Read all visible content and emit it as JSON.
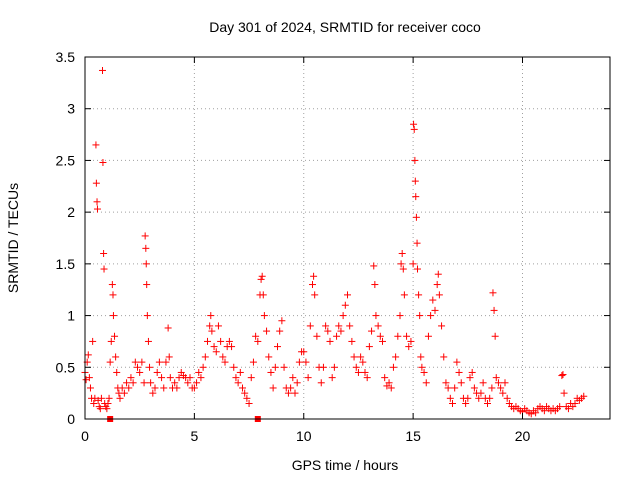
{
  "chart_data": {
    "type": "scatter",
    "title": "Day 301 of 2024, SRMTID for receiver coco",
    "xlabel": "GPS time / hours",
    "ylabel": "SRMTID / TECUs",
    "xlim": [
      0,
      24
    ],
    "ylim": [
      0,
      3.5
    ],
    "xticks": [
      0,
      5,
      10,
      15,
      20
    ],
    "yticks": [
      0,
      0.5,
      1,
      1.5,
      2,
      2.5,
      3,
      3.5
    ],
    "xtick_labels": [
      "0",
      "5",
      "10",
      "15",
      "20"
    ],
    "ytick_labels": [
      "0",
      "0.5",
      "1",
      "1.5",
      "2",
      "2.5",
      "3",
      "3.5"
    ],
    "grid": true,
    "marker": "+",
    "color": "#ff0000",
    "series": [
      {
        "name": "SRMTID",
        "points": [
          [
            0.0,
            0.45
          ],
          [
            0.05,
            0.38
          ],
          [
            0.1,
            0.55
          ],
          [
            0.15,
            0.62
          ],
          [
            0.2,
            0.4
          ],
          [
            0.25,
            0.3
          ],
          [
            0.3,
            0.2
          ],
          [
            0.35,
            0.75
          ],
          [
            0.4,
            0.15
          ],
          [
            0.45,
            0.2
          ],
          [
            0.5,
            2.65
          ],
          [
            0.52,
            2.28
          ],
          [
            0.55,
            2.1
          ],
          [
            0.57,
            2.03
          ],
          [
            0.6,
            0.18
          ],
          [
            0.65,
            0.12
          ],
          [
            0.7,
            0.1
          ],
          [
            0.75,
            0.2
          ],
          [
            0.8,
            3.37
          ],
          [
            0.82,
            2.48
          ],
          [
            0.85,
            1.6
          ],
          [
            0.87,
            1.45
          ],
          [
            0.9,
            0.15
          ],
          [
            0.95,
            0.12
          ],
          [
            1.0,
            0.1
          ],
          [
            1.05,
            0.15
          ],
          [
            1.1,
            0.2
          ],
          [
            1.15,
            0.55
          ],
          [
            1.2,
            0.75
          ],
          [
            1.25,
            1.3
          ],
          [
            1.28,
            1.2
          ],
          [
            1.3,
            1.0
          ],
          [
            1.35,
            0.8
          ],
          [
            1.4,
            0.6
          ],
          [
            1.45,
            0.45
          ],
          [
            1.5,
            0.3
          ],
          [
            1.55,
            0.25
          ],
          [
            1.6,
            0.2
          ],
          [
            1.7,
            0.3
          ],
          [
            1.8,
            0.25
          ],
          [
            1.9,
            0.35
          ],
          [
            2.0,
            0.3
          ],
          [
            2.1,
            0.4
          ],
          [
            2.2,
            0.35
          ],
          [
            2.3,
            0.55
          ],
          [
            2.4,
            0.5
          ],
          [
            2.5,
            0.45
          ],
          [
            2.6,
            0.55
          ],
          [
            2.7,
            0.35
          ],
          [
            2.75,
            1.77
          ],
          [
            2.78,
            1.65
          ],
          [
            2.8,
            1.5
          ],
          [
            2.82,
            1.3
          ],
          [
            2.85,
            1.0
          ],
          [
            2.9,
            0.75
          ],
          [
            2.95,
            0.5
          ],
          [
            3.0,
            0.35
          ],
          [
            3.1,
            0.25
          ],
          [
            3.2,
            0.3
          ],
          [
            3.3,
            0.45
          ],
          [
            3.4,
            0.55
          ],
          [
            3.5,
            0.4
          ],
          [
            3.6,
            0.3
          ],
          [
            3.7,
            0.55
          ],
          [
            3.8,
            0.88
          ],
          [
            3.85,
            0.6
          ],
          [
            3.9,
            0.4
          ],
          [
            4.0,
            0.3
          ],
          [
            4.1,
            0.35
          ],
          [
            4.2,
            0.3
          ],
          [
            4.3,
            0.4
          ],
          [
            4.4,
            0.45
          ],
          [
            4.5,
            0.42
          ],
          [
            4.6,
            0.4
          ],
          [
            4.7,
            0.35
          ],
          [
            4.8,
            0.4
          ],
          [
            4.9,
            0.3
          ],
          [
            5.0,
            0.3
          ],
          [
            5.1,
            0.35
          ],
          [
            5.2,
            0.45
          ],
          [
            5.3,
            0.4
          ],
          [
            5.4,
            0.5
          ],
          [
            5.5,
            0.6
          ],
          [
            5.6,
            0.75
          ],
          [
            5.7,
            0.9
          ],
          [
            5.75,
            1.0
          ],
          [
            5.8,
            0.85
          ],
          [
            5.9,
            0.7
          ],
          [
            6.0,
            0.65
          ],
          [
            6.1,
            0.9
          ],
          [
            6.2,
            0.75
          ],
          [
            6.3,
            0.6
          ],
          [
            6.4,
            0.55
          ],
          [
            6.5,
            0.7
          ],
          [
            6.6,
            0.75
          ],
          [
            6.7,
            0.7
          ],
          [
            6.8,
            0.5
          ],
          [
            6.9,
            0.4
          ],
          [
            7.0,
            0.35
          ],
          [
            7.1,
            0.45
          ],
          [
            7.2,
            0.3
          ],
          [
            7.3,
            0.25
          ],
          [
            7.4,
            0.2
          ],
          [
            7.5,
            0.15
          ],
          [
            7.6,
            0.4
          ],
          [
            7.7,
            0.55
          ],
          [
            7.8,
            0.8
          ],
          [
            7.9,
            0.75
          ],
          [
            8.0,
            1.2
          ],
          [
            8.05,
            1.35
          ],
          [
            8.1,
            1.38
          ],
          [
            8.15,
            1.2
          ],
          [
            8.2,
            1.0
          ],
          [
            8.3,
            0.85
          ],
          [
            8.4,
            0.6
          ],
          [
            8.5,
            0.45
          ],
          [
            8.6,
            0.3
          ],
          [
            8.7,
            0.5
          ],
          [
            8.8,
            0.7
          ],
          [
            8.9,
            0.85
          ],
          [
            9.0,
            0.95
          ],
          [
            9.1,
            0.5
          ],
          [
            9.2,
            0.3
          ],
          [
            9.3,
            0.25
          ],
          [
            9.4,
            0.3
          ],
          [
            9.5,
            0.4
          ],
          [
            9.6,
            0.25
          ],
          [
            9.7,
            0.35
          ],
          [
            9.8,
            0.55
          ],
          [
            9.9,
            0.65
          ],
          [
            10.0,
            0.65
          ],
          [
            10.1,
            0.55
          ],
          [
            10.2,
            0.4
          ],
          [
            10.3,
            0.9
          ],
          [
            10.4,
            1.3
          ],
          [
            10.45,
            1.38
          ],
          [
            10.5,
            1.2
          ],
          [
            10.6,
            0.8
          ],
          [
            10.7,
            0.5
          ],
          [
            10.8,
            0.35
          ],
          [
            10.9,
            0.5
          ],
          [
            11.0,
            0.9
          ],
          [
            11.1,
            0.85
          ],
          [
            11.2,
            0.75
          ],
          [
            11.3,
            0.4
          ],
          [
            11.4,
            0.5
          ],
          [
            11.5,
            0.8
          ],
          [
            11.6,
            0.9
          ],
          [
            11.7,
            0.85
          ],
          [
            11.8,
            1.0
          ],
          [
            11.9,
            1.1
          ],
          [
            12.0,
            1.2
          ],
          [
            12.1,
            0.9
          ],
          [
            12.2,
            0.75
          ],
          [
            12.3,
            0.6
          ],
          [
            12.4,
            0.5
          ],
          [
            12.5,
            0.45
          ],
          [
            12.6,
            0.6
          ],
          [
            12.7,
            0.55
          ],
          [
            12.8,
            0.45
          ],
          [
            12.9,
            0.4
          ],
          [
            13.0,
            0.7
          ],
          [
            13.1,
            0.85
          ],
          [
            13.2,
            1.48
          ],
          [
            13.25,
            1.3
          ],
          [
            13.3,
            1.0
          ],
          [
            13.4,
            0.9
          ],
          [
            13.5,
            0.8
          ],
          [
            13.6,
            0.75
          ],
          [
            13.7,
            0.4
          ],
          [
            13.8,
            0.32
          ],
          [
            13.9,
            0.35
          ],
          [
            14.0,
            0.3
          ],
          [
            14.1,
            0.5
          ],
          [
            14.2,
            0.6
          ],
          [
            14.3,
            0.8
          ],
          [
            14.4,
            1.0
          ],
          [
            14.45,
            1.5
          ],
          [
            14.5,
            1.6
          ],
          [
            14.55,
            1.45
          ],
          [
            14.6,
            1.2
          ],
          [
            14.7,
            0.8
          ],
          [
            14.8,
            0.7
          ],
          [
            14.9,
            0.75
          ],
          [
            15.0,
            1.5
          ],
          [
            15.02,
            2.85
          ],
          [
            15.05,
            2.8
          ],
          [
            15.08,
            2.5
          ],
          [
            15.1,
            2.3
          ],
          [
            15.12,
            2.15
          ],
          [
            15.15,
            1.95
          ],
          [
            15.18,
            1.7
          ],
          [
            15.2,
            1.45
          ],
          [
            15.25,
            1.2
          ],
          [
            15.3,
            1.0
          ],
          [
            15.35,
            0.6
          ],
          [
            15.4,
            0.5
          ],
          [
            15.5,
            0.45
          ],
          [
            15.6,
            0.35
          ],
          [
            15.7,
            0.8
          ],
          [
            15.8,
            1.0
          ],
          [
            15.9,
            1.15
          ],
          [
            16.0,
            1.05
          ],
          [
            16.1,
            1.3
          ],
          [
            16.15,
            1.4
          ],
          [
            16.2,
            1.2
          ],
          [
            16.3,
            0.9
          ],
          [
            16.4,
            0.6
          ],
          [
            16.5,
            0.35
          ],
          [
            16.6,
            0.3
          ],
          [
            16.7,
            0.2
          ],
          [
            16.8,
            0.15
          ],
          [
            16.9,
            0.3
          ],
          [
            17.0,
            0.55
          ],
          [
            17.1,
            0.45
          ],
          [
            17.2,
            0.35
          ],
          [
            17.3,
            0.2
          ],
          [
            17.4,
            0.15
          ],
          [
            17.5,
            0.2
          ],
          [
            17.6,
            0.4
          ],
          [
            17.7,
            0.45
          ],
          [
            17.8,
            0.3
          ],
          [
            17.9,
            0.25
          ],
          [
            18.0,
            0.2
          ],
          [
            18.1,
            0.25
          ],
          [
            18.2,
            0.35
          ],
          [
            18.3,
            0.2
          ],
          [
            18.4,
            0.15
          ],
          [
            18.5,
            0.2
          ],
          [
            18.6,
            0.3
          ],
          [
            18.65,
            1.22
          ],
          [
            18.7,
            1.05
          ],
          [
            18.75,
            0.8
          ],
          [
            18.8,
            0.4
          ],
          [
            18.9,
            0.35
          ],
          [
            19.0,
            0.3
          ],
          [
            19.1,
            0.25
          ],
          [
            19.2,
            0.35
          ],
          [
            19.3,
            0.2
          ],
          [
            19.4,
            0.15
          ],
          [
            19.5,
            0.12
          ],
          [
            19.6,
            0.1
          ],
          [
            19.7,
            0.12
          ],
          [
            19.8,
            0.1
          ],
          [
            19.9,
            0.08
          ],
          [
            20.0,
            0.07
          ],
          [
            20.1,
            0.1
          ],
          [
            20.2,
            0.08
          ],
          [
            20.3,
            0.06
          ],
          [
            20.4,
            0.05
          ],
          [
            20.5,
            0.08
          ],
          [
            20.6,
            0.06
          ],
          [
            20.7,
            0.1
          ],
          [
            20.8,
            0.12
          ],
          [
            20.9,
            0.1
          ],
          [
            21.0,
            0.08
          ],
          [
            21.1,
            0.12
          ],
          [
            21.2,
            0.1
          ],
          [
            21.3,
            0.08
          ],
          [
            21.4,
            0.1
          ],
          [
            21.5,
            0.08
          ],
          [
            21.6,
            0.1
          ],
          [
            21.7,
            0.12
          ],
          [
            21.8,
            0.42
          ],
          [
            21.85,
            0.43
          ],
          [
            21.9,
            0.25
          ],
          [
            22.0,
            0.12
          ],
          [
            22.1,
            0.1
          ],
          [
            22.2,
            0.15
          ],
          [
            22.3,
            0.12
          ],
          [
            22.4,
            0.15
          ],
          [
            22.5,
            0.2
          ],
          [
            22.6,
            0.18
          ],
          [
            22.7,
            0.2
          ],
          [
            22.8,
            0.22
          ]
        ]
      }
    ],
    "special_marks": [
      {
        "marker": "square",
        "points": [
          [
            1.15,
            0.0
          ],
          [
            7.9,
            0.0
          ]
        ]
      }
    ]
  }
}
